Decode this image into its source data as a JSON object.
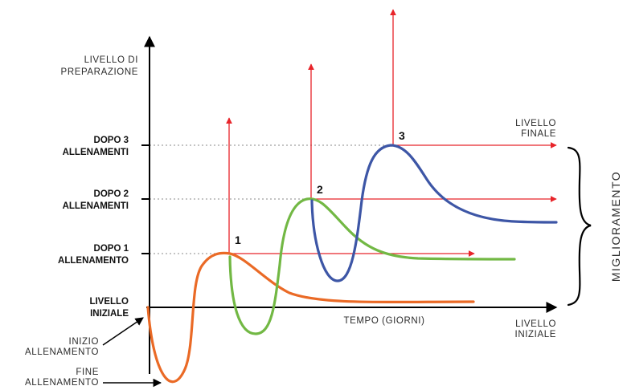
{
  "y_axis": {
    "label_lines": [
      "LIVELLO DI",
      "PREPARAZIONE"
    ]
  },
  "x_axis": {
    "label": "TEMPO (GIORNI)"
  },
  "levels": [
    {
      "lines": [
        "LIVELLO",
        "INIZIALE"
      ]
    },
    {
      "lines": [
        "DOPO 1",
        "ALLENAMENTO"
      ]
    },
    {
      "lines": [
        "DOPO 2",
        "ALLENAMENTI"
      ]
    },
    {
      "lines": [
        "DOPO 3",
        "ALLENAMENTI"
      ]
    }
  ],
  "peaks": [
    "1",
    "2",
    "3"
  ],
  "right_labels": {
    "final": [
      "LIVELLO",
      "FINALE"
    ],
    "initial": [
      "LIVELLO",
      "INIZIALE"
    ]
  },
  "bracket_label": "MIGLIORAMENTO",
  "annotations": {
    "start": [
      "INIZIO",
      "ALLENAMENTO"
    ],
    "end": [
      "FINE",
      "ALLENAMENTO"
    ]
  },
  "colors": {
    "axis": "#000000",
    "arrow": "#e8242a",
    "curve_1": "#ea6a26",
    "curve_2": "#72b844",
    "curve_3": "#3d56a6",
    "guide": "#888888"
  }
}
